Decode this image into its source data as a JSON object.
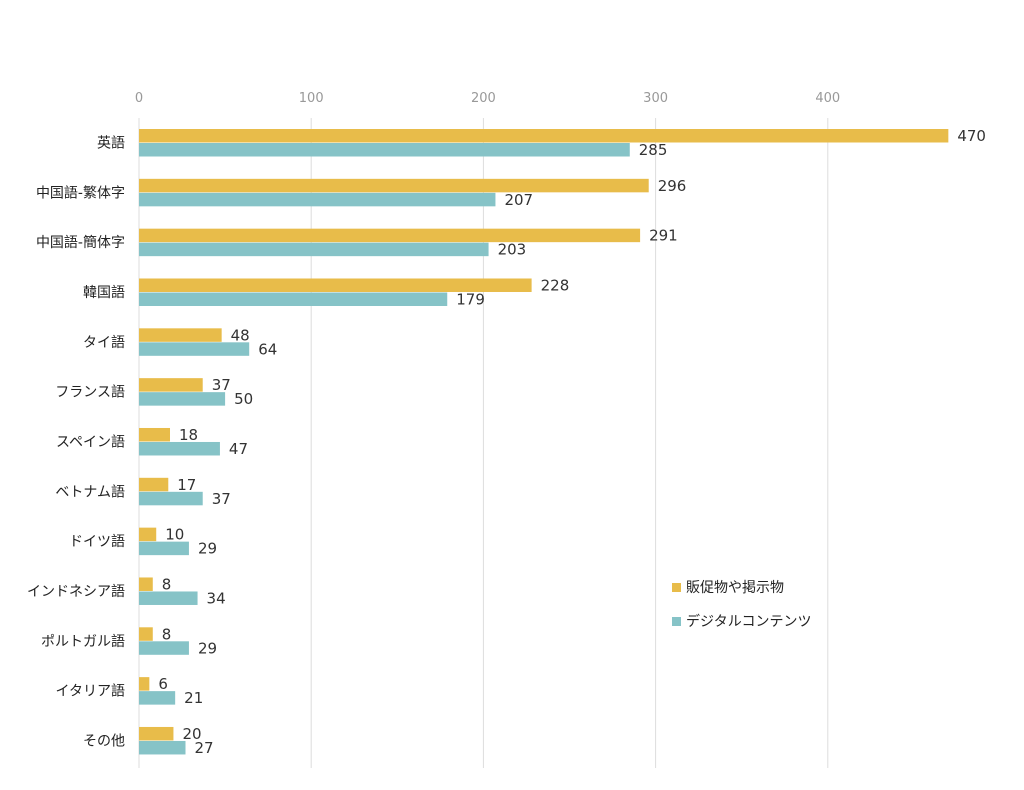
{
  "chart_data": {
    "type": "bar",
    "orientation": "horizontal",
    "title": "",
    "xlabel": "",
    "ylabel": "",
    "xlim": [
      0,
      470
    ],
    "xticks": [
      0,
      100,
      200,
      300,
      400
    ],
    "grid": "vertical",
    "legend_position": "right",
    "categories": [
      "英語",
      "中国語-繁体字",
      "中国語-簡体字",
      "韓国語",
      "タイ語",
      "フランス語",
      "スペイン語",
      "ベトナム語",
      "ドイツ語",
      "インドネシア語",
      "ポルトガル語",
      "イタリア語",
      "その他"
    ],
    "series": [
      {
        "name": "販促物や掲示物",
        "color": "#E8BC4A",
        "values": [
          470,
          296,
          291,
          228,
          48,
          37,
          18,
          17,
          10,
          8,
          8,
          6,
          20
        ]
      },
      {
        "name": "デジタルコンテンツ",
        "color": "#86C3C7",
        "values": [
          285,
          207,
          203,
          179,
          64,
          50,
          47,
          37,
          29,
          34,
          29,
          21,
          27
        ]
      }
    ]
  }
}
